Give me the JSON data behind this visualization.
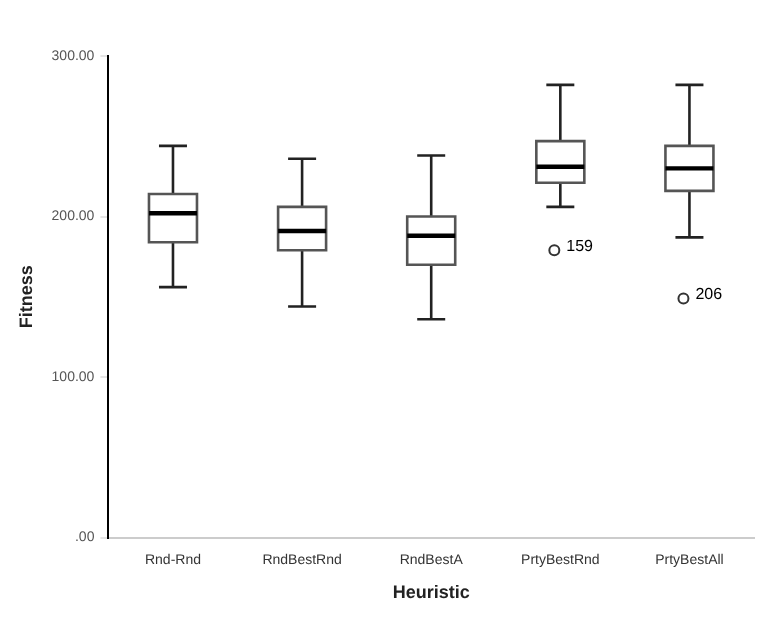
{
  "chart_data": {
    "type": "box",
    "xlabel": "Heuristic",
    "ylabel": "Fitness",
    "categories": [
      "Rnd-Rnd",
      "RndBestRnd",
      "RndBestA",
      "PrtyBestRnd",
      "PrtyBestAll"
    ],
    "boxes": [
      {
        "low": 156,
        "q1": 184,
        "median": 202,
        "q3": 214,
        "high": 244
      },
      {
        "low": 144,
        "q1": 179,
        "median": 191,
        "q3": 206,
        "high": 236
      },
      {
        "low": 136,
        "q1": 170,
        "median": 188,
        "q3": 200,
        "high": 238
      },
      {
        "low": 206,
        "q1": 221,
        "median": 231,
        "q3": 247,
        "high": 282,
        "outliers": [
          179
        ]
      },
      {
        "low": 187,
        "q1": 216,
        "median": 230,
        "q3": 244,
        "high": 282,
        "outliers": [
          149
        ]
      }
    ],
    "ylim": [
      0,
      300
    ],
    "yticks": [
      {
        "value": 0,
        "label": ".00"
      },
      {
        "value": 100,
        "label": "100.00"
      },
      {
        "value": 200,
        "label": "200.00"
      },
      {
        "value": 300,
        "label": "300.00"
      }
    ],
    "annotations": [
      "159",
      "206"
    ],
    "grid": false,
    "legend": false
  }
}
